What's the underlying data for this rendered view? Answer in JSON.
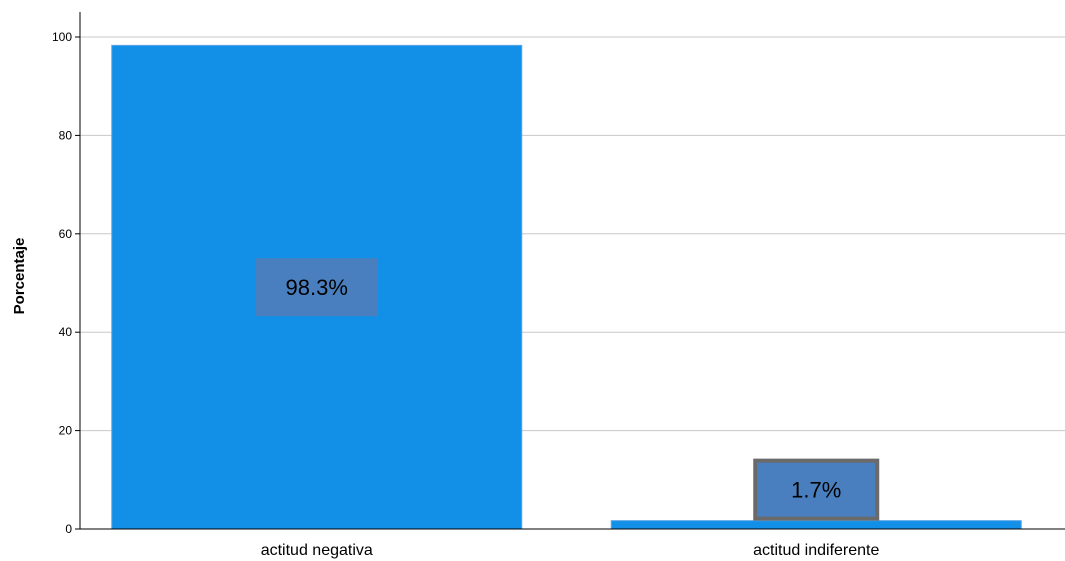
{
  "chart_data": {
    "type": "bar",
    "categories": [
      "actitud negativa",
      "actitud indiferente"
    ],
    "values": [
      98.3,
      1.7
    ],
    "data_labels": [
      "98.3%",
      "1.7%"
    ],
    "ylabel": "Porcentaje",
    "ylim": [
      0,
      100
    ],
    "yticks": [
      0,
      20,
      40,
      60,
      80,
      100
    ],
    "grid": true,
    "bar_color": "#1290e8",
    "label_box_color": "#4a7fbf",
    "label_box_border": "#6a6a6a"
  }
}
